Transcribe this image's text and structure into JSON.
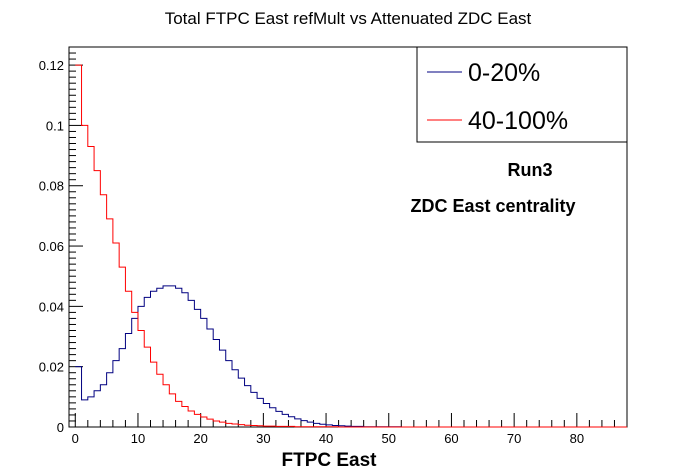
{
  "chart_data": {
    "type": "line",
    "title": "Total FTPC East refMult vs Attenuated  ZDC East",
    "xlabel": "FTPC East",
    "ylabel": "",
    "xlim": [
      -1,
      88
    ],
    "ylim": [
      0,
      0.126
    ],
    "x_ticks": [
      "0",
      "10",
      "20",
      "30",
      "40",
      "50",
      "60",
      "70",
      "80"
    ],
    "y_ticks": [
      "0",
      "0.02",
      "0.04",
      "0.06",
      "0.08",
      "0.1",
      "0.12"
    ],
    "grid": false,
    "legend_position": "top-right",
    "annotations": [
      "Run3",
      "ZDC East centrality"
    ],
    "series": [
      {
        "name": "0-20%",
        "color": "#000080",
        "x": [
          0,
          1,
          2,
          3,
          4,
          5,
          6,
          7,
          8,
          9,
          10,
          11,
          12,
          13,
          14,
          15,
          16,
          17,
          18,
          19,
          20,
          21,
          22,
          23,
          24,
          25,
          26,
          27,
          28,
          29,
          30,
          31,
          32,
          33,
          34,
          35,
          36,
          37,
          38,
          39,
          40,
          41,
          42,
          43,
          44,
          45,
          46,
          47,
          48,
          49,
          50,
          51,
          52,
          53,
          54,
          55,
          56,
          57,
          58,
          59,
          60,
          61,
          62,
          63,
          64,
          65,
          66,
          67,
          68,
          69,
          70,
          71,
          72,
          73,
          74,
          75,
          76,
          77,
          78,
          79,
          80,
          81,
          82,
          83,
          84,
          85,
          86,
          87
        ],
        "values": [
          0.02,
          0.009,
          0.01,
          0.012,
          0.014,
          0.018,
          0.022,
          0.026,
          0.031,
          0.036,
          0.04,
          0.043,
          0.045,
          0.046,
          0.0468,
          0.0468,
          0.046,
          0.0445,
          0.042,
          0.039,
          0.036,
          0.0325,
          0.029,
          0.0255,
          0.022,
          0.019,
          0.0162,
          0.0137,
          0.0115,
          0.0095,
          0.0078,
          0.0064,
          0.0052,
          0.0042,
          0.0034,
          0.0027,
          0.0021,
          0.0016,
          0.0012,
          0.0009,
          0.0007,
          0.0005,
          0.0004,
          0.0003,
          0.0002,
          0.0002,
          0.0001,
          0.0001,
          0.0001,
          0.0001,
          0.0001,
          0.0001,
          0,
          0,
          0,
          0,
          0,
          0,
          0,
          0,
          0,
          0,
          0,
          0,
          0,
          0,
          0,
          0,
          0,
          0,
          0,
          0,
          0,
          0,
          0,
          0,
          0,
          0,
          0,
          0,
          0,
          0,
          0,
          0,
          0,
          0,
          0,
          0
        ]
      },
      {
        "name": "40-100%",
        "color": "#ff0000",
        "x": [
          0,
          1,
          2,
          3,
          4,
          5,
          6,
          7,
          8,
          9,
          10,
          11,
          12,
          13,
          14,
          15,
          16,
          17,
          18,
          19,
          20,
          21,
          22,
          23,
          24,
          25,
          26,
          27,
          28,
          29,
          30,
          31,
          32,
          33,
          34,
          35,
          36,
          37,
          38,
          39,
          40,
          41,
          42,
          43,
          44,
          45,
          46,
          47,
          48,
          49,
          50,
          51,
          52,
          53,
          54,
          55,
          56,
          57,
          58,
          59,
          60,
          61,
          62,
          63,
          64,
          65,
          66,
          67,
          68,
          69,
          70,
          71,
          72,
          73,
          74,
          75,
          76,
          77,
          78,
          79,
          80,
          81,
          82,
          83,
          84,
          85,
          86,
          87
        ],
        "values": [
          0.12,
          0.1,
          0.093,
          0.085,
          0.077,
          0.069,
          0.061,
          0.053,
          0.045,
          0.038,
          0.032,
          0.0265,
          0.0215,
          0.0175,
          0.014,
          0.011,
          0.0085,
          0.0068,
          0.0053,
          0.0042,
          0.0033,
          0.0026,
          0.002,
          0.0016,
          0.0012,
          0.001,
          0.0008,
          0.0006,
          0.0005,
          0.0004,
          0.0003,
          0.0003,
          0.0002,
          0.0002,
          0.0002,
          0.0001,
          0.0001,
          0.0001,
          0.0001,
          0.0001,
          0.0001,
          0.0001,
          0,
          0,
          0,
          0,
          0,
          0,
          0,
          0,
          0,
          0,
          0,
          0,
          0,
          0,
          0,
          0,
          0,
          0,
          0,
          0,
          0,
          0,
          0,
          0,
          0,
          0,
          0,
          0,
          0,
          0,
          0,
          0,
          0,
          0,
          0,
          0,
          0,
          0,
          0,
          0,
          0,
          0,
          0,
          0,
          0,
          0
        ]
      }
    ]
  }
}
